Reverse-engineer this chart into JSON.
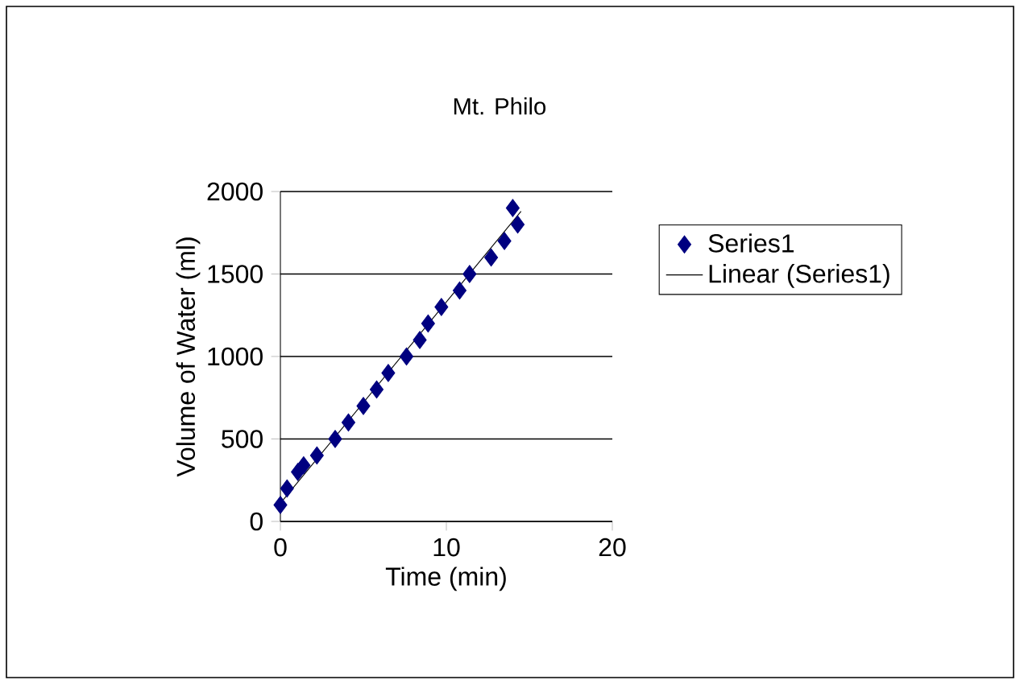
{
  "chart_data": {
    "type": "scatter",
    "title": "Mt. Philo",
    "xlabel": "Time (min)",
    "ylabel": "Volume of Water (ml)",
    "xlim": [
      0,
      20
    ],
    "ylim": [
      0,
      2000
    ],
    "xticks": [
      0,
      10,
      20
    ],
    "yticks": [
      0,
      500,
      1000,
      1500,
      2000
    ],
    "grid": "y",
    "legend": "right",
    "marker": "diamond",
    "series": [
      {
        "name": "Series1",
        "color": "#000080",
        "x": [
          0,
          0.4,
          1.05,
          1.4,
          2.2,
          3.3,
          4.1,
          5.0,
          5.8,
          6.5,
          7.6,
          8.4,
          8.9,
          9.7,
          10.8,
          11.4,
          12.7,
          13.5,
          14.3,
          14.0
        ],
        "values": [
          100,
          200,
          300,
          340,
          400,
          500,
          600,
          700,
          800,
          900,
          1000,
          1100,
          1200,
          1300,
          1400,
          1500,
          1600,
          1700,
          1800,
          1900
        ]
      },
      {
        "name": "Linear (Series1)",
        "type": "line",
        "color": "#000000",
        "marker": "none",
        "x": [
          0,
          14.5
        ],
        "values": [
          110,
          1880
        ]
      }
    ]
  }
}
